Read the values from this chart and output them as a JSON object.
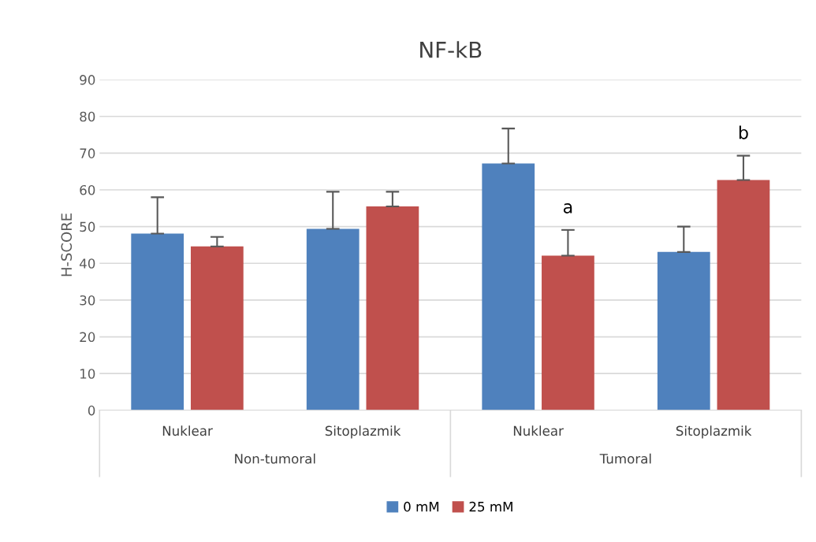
{
  "chart_data": {
    "type": "bar",
    "title": "NF-kB",
    "ylabel": "H-SCORE",
    "categories": [
      "Nuklear",
      "Sitoplazmik",
      "Nuklear",
      "Sitoplazmik"
    ],
    "series": [
      {
        "name": "0 mM",
        "color": "#4f81bd",
        "values": [
          48.1,
          49.4,
          67.2,
          43.1
        ],
        "errors": [
          [
            48.1,
            58.0
          ],
          [
            49.4,
            59.5
          ],
          [
            67.2,
            76.7
          ],
          [
            43.1,
            50.0
          ]
        ]
      },
      {
        "name": "25 mM",
        "color": "#c0504d",
        "values": [
          44.6,
          55.5,
          42.1,
          62.7
        ],
        "errors": [
          [
            44.6,
            47.2
          ],
          [
            55.5,
            59.5
          ],
          [
            42.1,
            49.1
          ],
          [
            62.7,
            69.3
          ]
        ],
        "value_labels": [
          null,
          null,
          "a",
          "b"
        ]
      }
    ],
    "annotations": [
      "Non-tumoral",
      "Tumoral"
    ],
    "ylim": [
      0,
      90
    ],
    "yticks": [
      0,
      10,
      20,
      30,
      40,
      50,
      60,
      70,
      80,
      90
    ],
    "grid": "y",
    "legend": "bottom"
  }
}
